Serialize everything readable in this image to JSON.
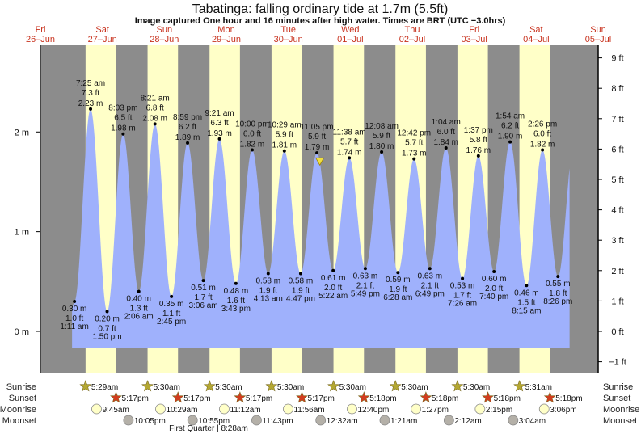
{
  "title": "Tabatinga: falling  ordinary tide at 1.7m (5.5ft)",
  "subtitle": "Image captured One hour and 16 minutes after high water. Times are BRT (UTC −3.0hrs)",
  "colors": {
    "water": "#9fb1fc",
    "night": "#8c8c8c",
    "day": "#ffffc8",
    "day_label": "#c8321e",
    "sunrise": "#b4a832",
    "sunset": "#d23c1e",
    "moonrise": "#ffffc8",
    "moonset": "#b4b0a8",
    "now_marker": "#f0e040"
  },
  "chart_data": {
    "type": "area",
    "title": "Tabatinga: falling  ordinary tide at 1.7m (5.5ft)",
    "current_level_m": 1.7,
    "current_level_ft": 5.5,
    "y_left_unit": "m",
    "y_right_unit": "ft",
    "y_left_ticks": [
      "0 m",
      "1 m",
      "2 m"
    ],
    "y_right_ticks": [
      "−1 ft",
      "0 ft",
      "1 ft",
      "2 ft",
      "3 ft",
      "4 ft",
      "5 ft",
      "6 ft",
      "7 ft",
      "8 ft",
      "9 ft"
    ],
    "days": [
      {
        "dow": "Fri",
        "date": "26–Jun"
      },
      {
        "dow": "Sat",
        "date": "27–Jun"
      },
      {
        "dow": "Sun",
        "date": "28–Jun"
      },
      {
        "dow": "Mon",
        "date": "29–Jun"
      },
      {
        "dow": "Tue",
        "date": "30–Jun"
      },
      {
        "dow": "Wed",
        "date": "01–Jul"
      },
      {
        "dow": "Thu",
        "date": "02–Jul"
      },
      {
        "dow": "Fri",
        "date": "03–Jul"
      },
      {
        "dow": "Sat",
        "date": "04–Jul"
      },
      {
        "dow": "Sun",
        "date": "05–Jul"
      }
    ],
    "extremes": [
      {
        "date": "27-Jun",
        "time": "1:11 am",
        "type": "low",
        "m": "0.30 m",
        "ft": "1.0 ft"
      },
      {
        "date": "27-Jun",
        "time": "7:25 am",
        "type": "high",
        "m": "2.23 m",
        "ft": "7.3 ft"
      },
      {
        "date": "27-Jun",
        "time": "1:50 pm",
        "type": "low",
        "m": "0.20 m",
        "ft": "0.7 ft"
      },
      {
        "date": "27-Jun",
        "time": "8:03 pm",
        "type": "high",
        "m": "1.98 m",
        "ft": "6.5 ft"
      },
      {
        "date": "28-Jun",
        "time": "2:06 am",
        "type": "low",
        "m": "0.40 m",
        "ft": "1.3 ft"
      },
      {
        "date": "28-Jun",
        "time": "8:21 am",
        "type": "high",
        "m": "2.08 m",
        "ft": "6.8 ft"
      },
      {
        "date": "28-Jun",
        "time": "2:45 pm",
        "type": "low",
        "m": "0.35 m",
        "ft": "1.1 ft"
      },
      {
        "date": "28-Jun",
        "time": "8:59 pm",
        "type": "high",
        "m": "1.89 m",
        "ft": "6.2 ft"
      },
      {
        "date": "29-Jun",
        "time": "3:06 am",
        "type": "low",
        "m": "0.51 m",
        "ft": "1.7 ft"
      },
      {
        "date": "29-Jun",
        "time": "9:21 am",
        "type": "high",
        "m": "1.93 m",
        "ft": "6.3 ft"
      },
      {
        "date": "29-Jun",
        "time": "3:43 pm",
        "type": "low",
        "m": "0.48 m",
        "ft": "1.6 ft"
      },
      {
        "date": "29-Jun",
        "time": "10:00 pm",
        "type": "high",
        "m": "1.82 m",
        "ft": "6.0 ft"
      },
      {
        "date": "30-Jun",
        "time": "4:13 am",
        "type": "low",
        "m": "0.58 m",
        "ft": "1.9 ft"
      },
      {
        "date": "30-Jun",
        "time": "10:29 am",
        "type": "high",
        "m": "1.81 m",
        "ft": "5.9 ft"
      },
      {
        "date": "30-Jun",
        "time": "4:47 pm",
        "type": "low",
        "m": "0.58 m",
        "ft": "1.9 ft"
      },
      {
        "date": "30-Jun",
        "time": "11:05 pm",
        "type": "high",
        "m": "1.79 m",
        "ft": "5.9 ft"
      },
      {
        "date": "01-Jul",
        "time": "5:22 am",
        "type": "low",
        "m": "0.61 m",
        "ft": "2.0 ft"
      },
      {
        "date": "01-Jul",
        "time": "11:38 am",
        "type": "high",
        "m": "1.74 m",
        "ft": "5.7 ft"
      },
      {
        "date": "01-Jul",
        "time": "5:49 pm",
        "type": "low",
        "m": "0.63 m",
        "ft": "2.1 ft"
      },
      {
        "date": "02-Jul",
        "time": "12:08 am",
        "type": "high",
        "m": "1.80 m",
        "ft": "5.9 ft"
      },
      {
        "date": "02-Jul",
        "time": "6:28 am",
        "type": "low",
        "m": "0.59 m",
        "ft": "1.9 ft"
      },
      {
        "date": "02-Jul",
        "time": "12:42 pm",
        "type": "high",
        "m": "1.73 m",
        "ft": "5.7 ft"
      },
      {
        "date": "02-Jul",
        "time": "6:49 pm",
        "type": "low",
        "m": "0.63 m",
        "ft": "2.1 ft"
      },
      {
        "date": "03-Jul",
        "time": "1:04 am",
        "type": "high",
        "m": "1.84 m",
        "ft": "6.0 ft"
      },
      {
        "date": "03-Jul",
        "time": "7:26 am",
        "type": "low",
        "m": "0.53 m",
        "ft": "1.7 ft"
      },
      {
        "date": "03-Jul",
        "time": "1:37 pm",
        "type": "high",
        "m": "1.76 m",
        "ft": "5.8 ft"
      },
      {
        "date": "03-Jul",
        "time": "7:40 pm",
        "type": "low",
        "m": "0.60 m",
        "ft": "2.0 ft"
      },
      {
        "date": "04-Jul",
        "time": "1:54 am",
        "type": "high",
        "m": "1.90 m",
        "ft": "6.2 ft"
      },
      {
        "date": "04-Jul",
        "time": "8:15 am",
        "type": "low",
        "m": "0.46 m",
        "ft": "1.5 ft"
      },
      {
        "date": "04-Jul",
        "time": "2:26 pm",
        "type": "high",
        "m": "1.82 m",
        "ft": "6.0 ft"
      },
      {
        "date": "04-Jul",
        "time": "8:26 pm",
        "type": "low",
        "m": "0.55 m",
        "ft": "1.8 ft"
      }
    ]
  },
  "events": {
    "labels": {
      "sunrise": "Sunrise",
      "sunset": "Sunset",
      "moonrise": "Moonrise",
      "moonset": "Moonset"
    },
    "sunrise": [
      {
        "date": "27-Jun",
        "time": "5:29am"
      },
      {
        "date": "28-Jun",
        "time": "5:30am"
      },
      {
        "date": "29-Jun",
        "time": "5:30am"
      },
      {
        "date": "30-Jun",
        "time": "5:30am"
      },
      {
        "date": "01-Jul",
        "time": "5:30am"
      },
      {
        "date": "02-Jul",
        "time": "5:30am"
      },
      {
        "date": "03-Jul",
        "time": "5:30am"
      },
      {
        "date": "04-Jul",
        "time": "5:31am"
      }
    ],
    "sunset": [
      {
        "date": "27-Jun",
        "time": "5:17pm"
      },
      {
        "date": "28-Jun",
        "time": "5:17pm"
      },
      {
        "date": "29-Jun",
        "time": "5:17pm"
      },
      {
        "date": "30-Jun",
        "time": "5:17pm"
      },
      {
        "date": "01-Jul",
        "time": "5:18pm"
      },
      {
        "date": "02-Jul",
        "time": "5:18pm"
      },
      {
        "date": "03-Jul",
        "time": "5:18pm"
      },
      {
        "date": "04-Jul",
        "time": "5:18pm"
      }
    ],
    "moonrise": [
      {
        "date": "27-Jun",
        "time": "9:45am"
      },
      {
        "date": "28-Jun",
        "time": "10:29am"
      },
      {
        "date": "29-Jun",
        "time": "11:12am"
      },
      {
        "date": "30-Jun",
        "time": "11:56am"
      },
      {
        "date": "01-Jul",
        "time": "12:40pm"
      },
      {
        "date": "02-Jul",
        "time": "1:27pm"
      },
      {
        "date": "03-Jul",
        "time": "2:15pm"
      },
      {
        "date": "04-Jul",
        "time": "3:06pm"
      }
    ],
    "moonset": [
      {
        "date": "27-Jun",
        "time": "10:05pm"
      },
      {
        "date": "28-Jun",
        "time": "10:55pm"
      },
      {
        "date": "29-Jun",
        "time": "11:43pm"
      },
      {
        "date": "01-Jul",
        "time": "12:32am"
      },
      {
        "date": "02-Jul",
        "time": "1:21am"
      },
      {
        "date": "03-Jul",
        "time": "2:12am"
      },
      {
        "date": "04-Jul",
        "time": "3:04am"
      }
    ],
    "moon_phase": "First Quarter | 8:28am"
  }
}
